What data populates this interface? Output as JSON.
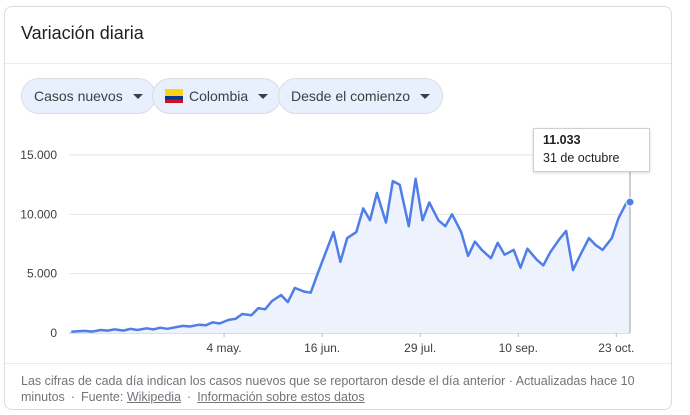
{
  "card": {
    "title": "Variación diaria"
  },
  "filters": {
    "metric": "Casos nuevos",
    "country": "Colombia",
    "range": "Desde el comienzo"
  },
  "tooltip": {
    "value": "11.033",
    "date": "31 de octubre"
  },
  "footer": {
    "text": "Las cifras de cada día indican los casos nuevos que se reportaron desde el día anterior · Actualizadas hace 10 minutos",
    "source_label": "Fuente:",
    "source_link": "Wikipedia",
    "info_link": "Información sobre estos datos"
  },
  "colors": {
    "line": "#4f7ee8",
    "area": "#eef2fd",
    "grid": "#e6e6e6",
    "chip_bg": "#e8f0fe"
  },
  "chart_data": {
    "type": "area",
    "title": "",
    "xlabel": "",
    "ylabel": "",
    "ylim": [
      0,
      15000
    ],
    "yticks": [
      "0",
      "5.000",
      "10.000",
      "15.000"
    ],
    "ytick_values": [
      0,
      5000,
      10000,
      15000
    ],
    "xticks": [
      "4 may.",
      "16 jun.",
      "29 jul.",
      "10 sep.",
      "23 oct."
    ],
    "xtick_days": [
      68,
      111,
      154,
      197,
      240
    ],
    "grid": true,
    "series": [
      {
        "x": [
          1,
          4,
          7,
          10,
          14,
          17,
          20,
          24,
          27,
          30,
          34,
          37,
          40,
          43,
          47,
          50,
          53,
          57,
          60,
          63,
          66,
          70,
          73,
          76,
          80,
          83,
          86,
          89,
          93,
          96,
          99,
          103,
          106,
          109,
          112,
          116,
          119,
          122,
          126,
          129,
          132,
          135,
          139,
          142,
          145,
          149,
          152,
          155,
          158,
          162,
          165,
          168,
          172,
          175,
          178,
          181,
          185,
          188,
          191,
          195,
          198,
          201,
          205,
          208,
          211,
          215,
          218,
          221,
          224,
          228,
          231,
          234,
          238,
          241,
          244,
          245,
          246
        ],
        "y": [
          100,
          150,
          180,
          120,
          250,
          200,
          300,
          200,
          350,
          250,
          400,
          300,
          450,
          350,
          500,
          600,
          550,
          700,
          650,
          900,
          800,
          1100,
          1200,
          1600,
          1500,
          2100,
          2000,
          2700,
          3200,
          2600,
          3800,
          3500,
          3400,
          5000,
          6500,
          8500,
          6000,
          8000,
          8500,
          10500,
          9500,
          11800,
          9300,
          12800,
          12500,
          9000,
          13000,
          9500,
          11000,
          9500,
          9000,
          10000,
          8500,
          6500,
          7700,
          7000,
          6300,
          7600,
          6600,
          7000,
          5500,
          7100,
          6200,
          5700,
          6800,
          7900,
          8600,
          5300,
          6500,
          8000,
          7400,
          7000,
          8000,
          9700,
          10800,
          11200,
          11033
        ]
      }
    ]
  }
}
